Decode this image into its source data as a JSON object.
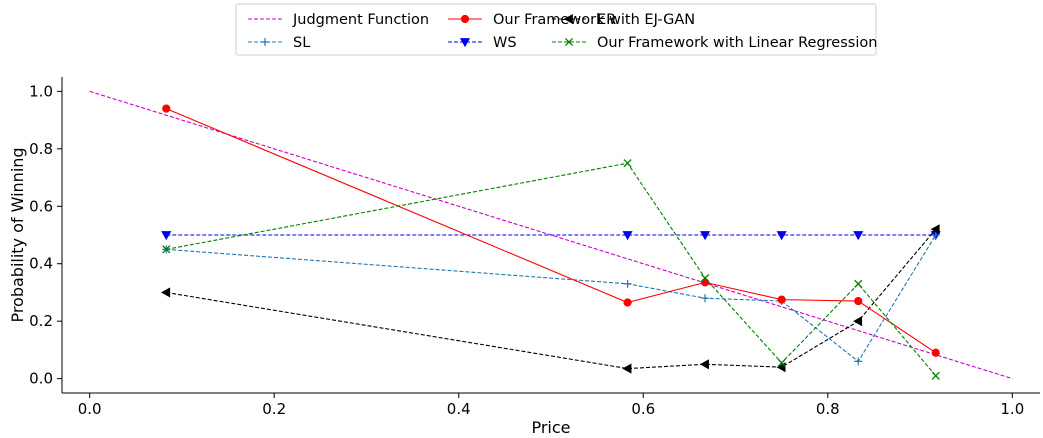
{
  "chart_data": {
    "type": "line",
    "title": "",
    "xlabel": "Price",
    "ylabel": "Probability of Winning",
    "xlim": [
      -0.03,
      1.03
    ],
    "ylim": [
      -0.05,
      1.05
    ],
    "xticks": [
      0.0,
      0.2,
      0.4,
      0.6,
      0.8,
      1.0
    ],
    "xtick_labels": [
      "0.0",
      "0.2",
      "0.4",
      "0.6",
      "0.8",
      "1.0"
    ],
    "yticks": [
      0.0,
      0.2,
      0.4,
      0.6,
      0.8,
      1.0
    ],
    "ytick_labels": [
      "0.0",
      "0.2",
      "0.4",
      "0.6",
      "0.8",
      "1.0"
    ],
    "grid": false,
    "legend_position": "top-center",
    "series": [
      {
        "name": "Judgment Function",
        "color": "#cc00cc",
        "marker": "none",
        "dash": true,
        "x": [
          0.0,
          1.0
        ],
        "y": [
          1.0,
          0.0
        ]
      },
      {
        "name": "WS",
        "color": "#0000ee",
        "marker": "triangle-down",
        "dash": true,
        "x": [
          0.083,
          0.583,
          0.667,
          0.75,
          0.833,
          0.917
        ],
        "y": [
          0.5,
          0.5,
          0.5,
          0.5,
          0.5,
          0.5
        ]
      },
      {
        "name": "SL",
        "color": "#1f77b4",
        "marker": "plus",
        "dash": true,
        "x": [
          0.083,
          0.583,
          0.667,
          0.75,
          0.833,
          0.917
        ],
        "y": [
          0.45,
          0.33,
          0.28,
          0.27,
          0.06,
          0.5
        ]
      },
      {
        "name": "ER",
        "color": "#000000",
        "marker": "triangle-left",
        "dash": true,
        "x": [
          0.083,
          0.583,
          0.667,
          0.75,
          0.833,
          0.917
        ],
        "y": [
          0.3,
          0.035,
          0.05,
          0.04,
          0.2,
          0.52
        ]
      },
      {
        "name": "Our Framework with EJ-GAN",
        "color": "#ff0000",
        "marker": "circle",
        "dash": false,
        "x": [
          0.083,
          0.583,
          0.667,
          0.75,
          0.833,
          0.917
        ],
        "y": [
          0.94,
          0.265,
          0.335,
          0.275,
          0.27,
          0.09
        ]
      },
      {
        "name": "Our Framework with Linear Regression",
        "color": "#008000",
        "marker": "x",
        "dash": true,
        "x": [
          0.083,
          0.583,
          0.667,
          0.75,
          0.833,
          0.917
        ],
        "y": [
          0.45,
          0.75,
          0.35,
          0.055,
          0.33,
          0.01
        ]
      }
    ],
    "legend_order": [
      0,
      2,
      4,
      1,
      3,
      5
    ]
  }
}
